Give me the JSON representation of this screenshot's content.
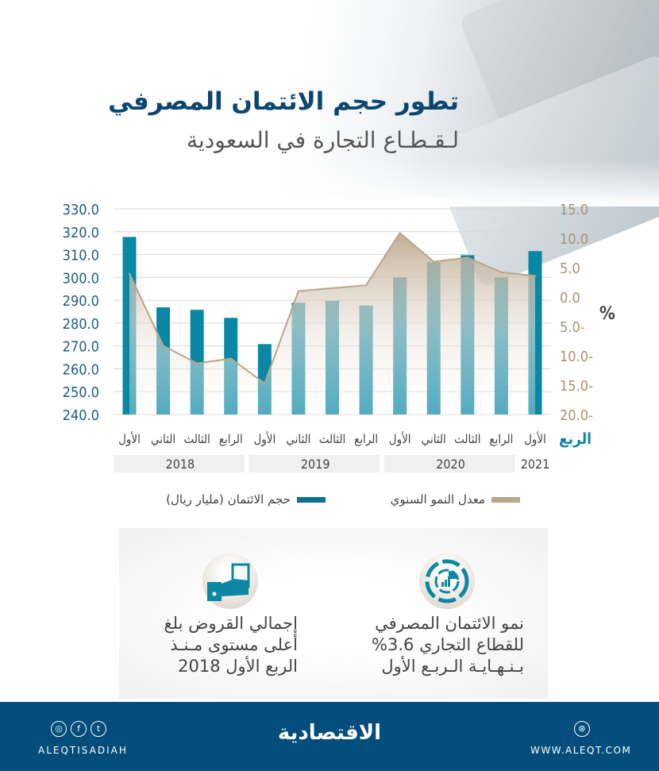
{
  "header": {
    "title": "تطور حجم الائتمان المصرفي",
    "subtitle": "لـقـطـاع التجارة في السعودية"
  },
  "chart_data": {
    "type": "bar",
    "title": "تطور حجم الائتمان المصرفي لقطاع التجارة في السعودية",
    "quarter_axis_label": "الربع",
    "categories": [
      "الأول",
      "الثاني",
      "الثالث",
      "الرابع",
      "الأول",
      "الثاني",
      "الثالث",
      "الرابع",
      "الأول",
      "الثاني",
      "الثالث",
      "الرابع",
      "الأول"
    ],
    "years": [
      {
        "label": "2018",
        "count": 4
      },
      {
        "label": "2019",
        "count": 4
      },
      {
        "label": "2020",
        "count": 4
      },
      {
        "label": "2021",
        "count": 1
      }
    ],
    "left_axis": {
      "ylim": [
        240,
        330
      ],
      "ticks": [
        "330.0",
        "320.0",
        "310.0",
        "300.0",
        "290.0",
        "280.0",
        "270.0",
        "260.0",
        "250.0",
        "240.0"
      ]
    },
    "right_axis": {
      "ylim": [
        -20,
        15
      ],
      "label": "%",
      "ticks": [
        "15.0",
        "10.0",
        "5.0",
        "0.0",
        "5.0-",
        "10.0-",
        "15.0-",
        "20.0-"
      ]
    },
    "grid": true,
    "series": [
      {
        "name": "حجم الائتمان (مليار ريال)",
        "type": "bar",
        "axis": "left",
        "color": "#0a87a4",
        "values": [
          317.7,
          286.9,
          285.8,
          282.3,
          270.8,
          288.9,
          289.8,
          287.7,
          300.0,
          306.6,
          309.7,
          300.0,
          311.5
        ]
      },
      {
        "name": "معدل النمو السنوي",
        "type": "area",
        "axis": "right",
        "color": "#b9a589",
        "values": [
          4.0,
          -8.3,
          -11.3,
          -10.5,
          -14.7,
          1.0,
          1.5,
          2.0,
          10.9,
          6.0,
          6.7,
          4.2,
          3.6
        ]
      }
    ],
    "legend_placement": "bottom"
  },
  "info": [
    {
      "lines": [
        "نمو الائتمان المصرفي",
        "للقطاع التجاري 3.6%",
        "بـنـهـايـة الـربـع الأول"
      ],
      "icon": "chart-target-icon"
    },
    {
      "lines": [
        "إجمالي القروض بلغ",
        "أعلى مستوى مـنـذ",
        "الربع الأول 2018"
      ],
      "icon": "hand-money-icon"
    }
  ],
  "footer": {
    "handle": "ALEQTISADIAH",
    "logo": "الاقتصادية",
    "website": "WWW.ALEQT.COM"
  }
}
